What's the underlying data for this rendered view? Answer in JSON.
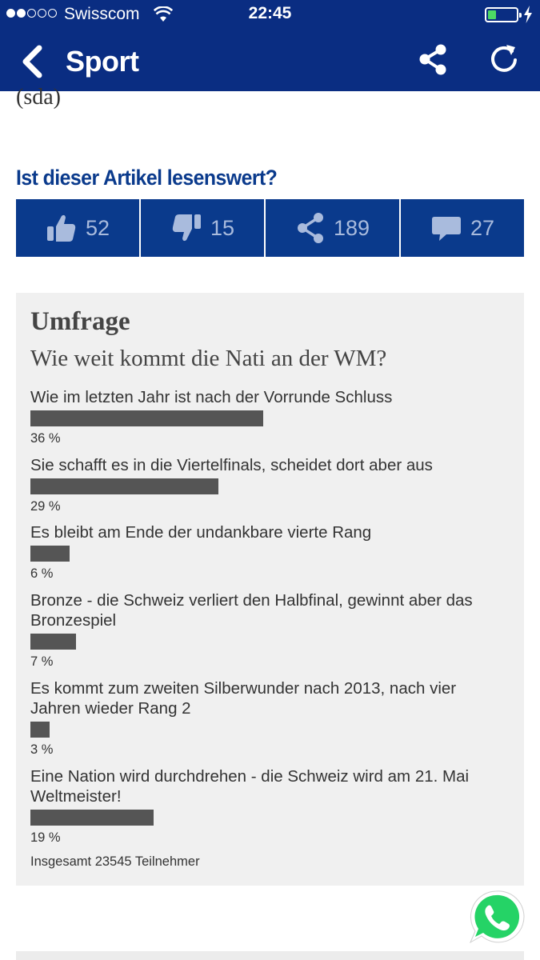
{
  "status_bar": {
    "carrier": "Swisscom",
    "time": "22:45",
    "signal_bars": 2,
    "battery_level": 0.3
  },
  "nav": {
    "title": "Sport",
    "icons": [
      "back-chevron-icon",
      "share-icon",
      "refresh-icon"
    ]
  },
  "article": {
    "source": "(sda)"
  },
  "vote": {
    "heading": "Ist dieser Artikel lesenswert?",
    "actions": [
      {
        "icon": "thumbs-up-icon",
        "count": "52"
      },
      {
        "icon": "thumbs-down-icon",
        "count": "15"
      },
      {
        "icon": "share-icon",
        "count": "189"
      },
      {
        "icon": "comment-icon",
        "count": "27"
      }
    ]
  },
  "poll": {
    "title": "Umfrage",
    "question": "Wie weit kommt die Nati an der WM?",
    "options": [
      {
        "text": "Wie im letzten Jahr ist nach der Vorrunde Schluss",
        "percent_label": "36 %",
        "percent": 36
      },
      {
        "text": "Sie schafft es in die Viertelfinals, scheidet dort aber aus",
        "percent_label": "29 %",
        "percent": 29
      },
      {
        "text": "Es bleibt am Ende der undankbare vierte Rang",
        "percent_label": "6 %",
        "percent": 6
      },
      {
        "text": "Bronze - die Schweiz verliert den Halbfinal, gewinnt aber das Bronzespiel",
        "percent_label": "7 %",
        "percent": 7
      },
      {
        "text": "Es kommt zum zweiten Silberwunder nach 2013, nach vier Jahren wieder Rang 2",
        "percent_label": "3 %",
        "percent": 3
      },
      {
        "text": "Eine Nation wird durchdrehen - die Schweiz wird am 21. Mai Weltmeister!",
        "percent_label": "19 %",
        "percent": 19
      }
    ],
    "total": "Insgesamt 23545 Teilnehmer"
  },
  "colors": {
    "brand_blue": "#0a2d82",
    "action_blue": "#0a3a8c",
    "poll_bar": "#555555",
    "whatsapp_green": "#25d366"
  }
}
